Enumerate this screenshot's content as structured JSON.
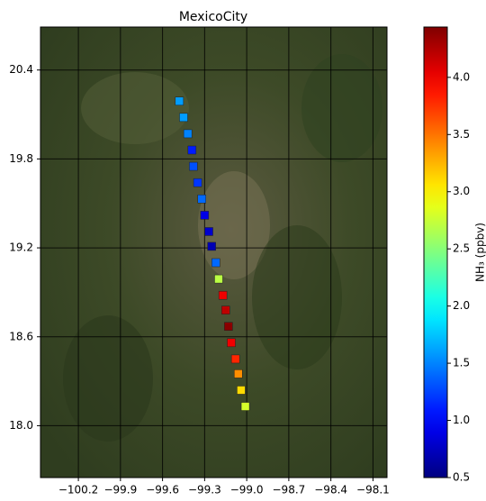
{
  "chart_data": {
    "type": "scatter",
    "title": "MexicoCity",
    "x": [
      -99.48,
      -99.45,
      -99.42,
      -99.39,
      -99.38,
      -99.35,
      -99.32,
      -99.3,
      -99.27,
      -99.25,
      -99.22,
      -99.2,
      -99.17,
      -99.15,
      -99.13,
      -99.11,
      -99.08,
      -99.06,
      -99.04,
      -99.01
    ],
    "values": [
      20.19,
      20.08,
      19.97,
      19.86,
      19.75,
      19.64,
      19.53,
      19.42,
      19.31,
      19.21,
      19.1,
      18.99,
      18.88,
      18.78,
      18.67,
      18.56,
      18.45,
      18.35,
      18.24,
      18.13
    ],
    "color_values": [
      1.6,
      1.6,
      1.5,
      1.1,
      1.3,
      1.2,
      1.4,
      0.9,
      0.8,
      0.7,
      1.4,
      2.7,
      4.0,
      4.2,
      4.4,
      4.0,
      3.8,
      3.4,
      3.1,
      2.8
    ],
    "xlim": [
      -100.47,
      -98.0
    ],
    "ylim": [
      17.65,
      20.69
    ],
    "xticks": [
      {
        "value": -100.2,
        "label": "−100.2"
      },
      {
        "value": -99.9,
        "label": "−99.9"
      },
      {
        "value": -99.6,
        "label": "−99.6"
      },
      {
        "value": -99.3,
        "label": "−99.3"
      },
      {
        "value": -99.0,
        "label": "−99.0"
      },
      {
        "value": -98.7,
        "label": "−98.7"
      },
      {
        "value": -98.4,
        "label": "−98.4"
      },
      {
        "value": -98.1,
        "label": "−98.1"
      }
    ],
    "yticks": [
      {
        "value": 18.0,
        "label": "18.0"
      },
      18.6,
      19.2,
      19.8,
      20.4
    ],
    "grid": true,
    "colorbar": {
      "label": "NH₃ (ppbv)",
      "colormap": "jet",
      "lim": [
        0.5,
        4.44
      ],
      "ticks": [
        0.5,
        {
          "value": 1.0,
          "label": "1.0"
        },
        1.5,
        {
          "value": 2.0,
          "label": "2.0"
        },
        2.5,
        {
          "value": 3.0,
          "label": "3.0"
        },
        3.5,
        {
          "value": 4.0,
          "label": "4.0"
        }
      ]
    }
  }
}
